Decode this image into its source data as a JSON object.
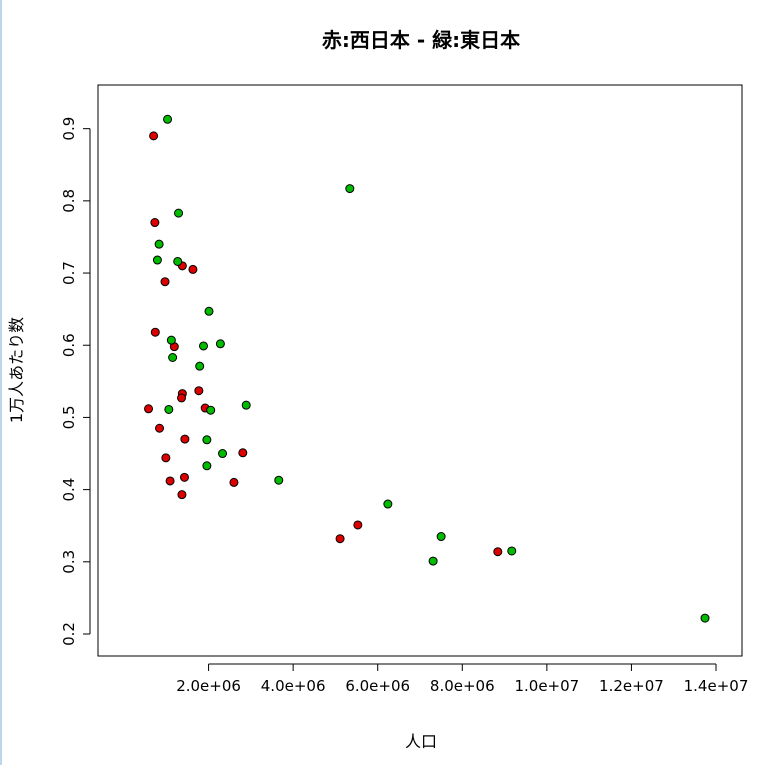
{
  "chart_data": {
    "type": "scatter",
    "title": "赤:西日本 - 緑:東日本",
    "xlabel": "人口",
    "ylabel": "1万人あたり数",
    "xlim": [
      0,
      14000000
    ],
    "ylim": [
      0.2,
      0.93
    ],
    "x_ticks": [
      2000000,
      4000000,
      6000000,
      8000000,
      10000000,
      12000000,
      14000000
    ],
    "x_tick_labels": [
      "2.0e+06",
      "4.0e+06",
      "6.0e+06",
      "8.0e+06",
      "1.0e+07",
      "1.2e+07",
      "1.4e+07"
    ],
    "y_ticks": [
      0.2,
      0.3,
      0.4,
      0.5,
      0.6,
      0.7,
      0.8,
      0.9
    ],
    "y_tick_labels": [
      "0.2",
      "0.3",
      "0.4",
      "0.5",
      "0.6",
      "0.7",
      "0.8",
      "0.9"
    ],
    "grid": false,
    "series": [
      {
        "color": "#dd0000",
        "points": [
          [
            700000,
            0.89
          ],
          [
            730000,
            0.77
          ],
          [
            740000,
            0.618
          ],
          [
            970000,
            0.688
          ],
          [
            1380000,
            0.71
          ],
          [
            1630000,
            0.705
          ],
          [
            1190000,
            0.598
          ],
          [
            580000,
            0.512
          ],
          [
            1380000,
            0.533
          ],
          [
            1360000,
            0.527
          ],
          [
            1770000,
            0.537
          ],
          [
            1920000,
            0.513
          ],
          [
            840000,
            0.485
          ],
          [
            1440000,
            0.47
          ],
          [
            990000,
            0.444
          ],
          [
            2810000,
            0.451
          ],
          [
            1090000,
            0.412
          ],
          [
            1430000,
            0.417
          ],
          [
            2600000,
            0.41
          ],
          [
            1370000,
            0.393
          ],
          [
            5110000,
            0.332
          ],
          [
            5530000,
            0.351
          ],
          [
            8840000,
            0.314
          ]
        ]
      },
      {
        "color": "#00bb00",
        "points": [
          [
            1030000,
            0.913
          ],
          [
            5340000,
            0.817
          ],
          [
            1290000,
            0.783
          ],
          [
            830000,
            0.74
          ],
          [
            790000,
            0.718
          ],
          [
            1270000,
            0.716
          ],
          [
            2010000,
            0.647
          ],
          [
            1120000,
            0.607
          ],
          [
            1880000,
            0.599
          ],
          [
            2280000,
            0.602
          ],
          [
            1150000,
            0.583
          ],
          [
            1790000,
            0.571
          ],
          [
            1060000,
            0.511
          ],
          [
            2050000,
            0.51
          ],
          [
            2890000,
            0.517
          ],
          [
            1960000,
            0.469
          ],
          [
            2330000,
            0.45
          ],
          [
            1960000,
            0.433
          ],
          [
            3660000,
            0.413
          ],
          [
            6240000,
            0.38
          ],
          [
            7500000,
            0.335
          ],
          [
            7310000,
            0.301
          ],
          [
            9170000,
            0.315
          ],
          [
            13740000,
            0.222
          ]
        ]
      }
    ]
  }
}
